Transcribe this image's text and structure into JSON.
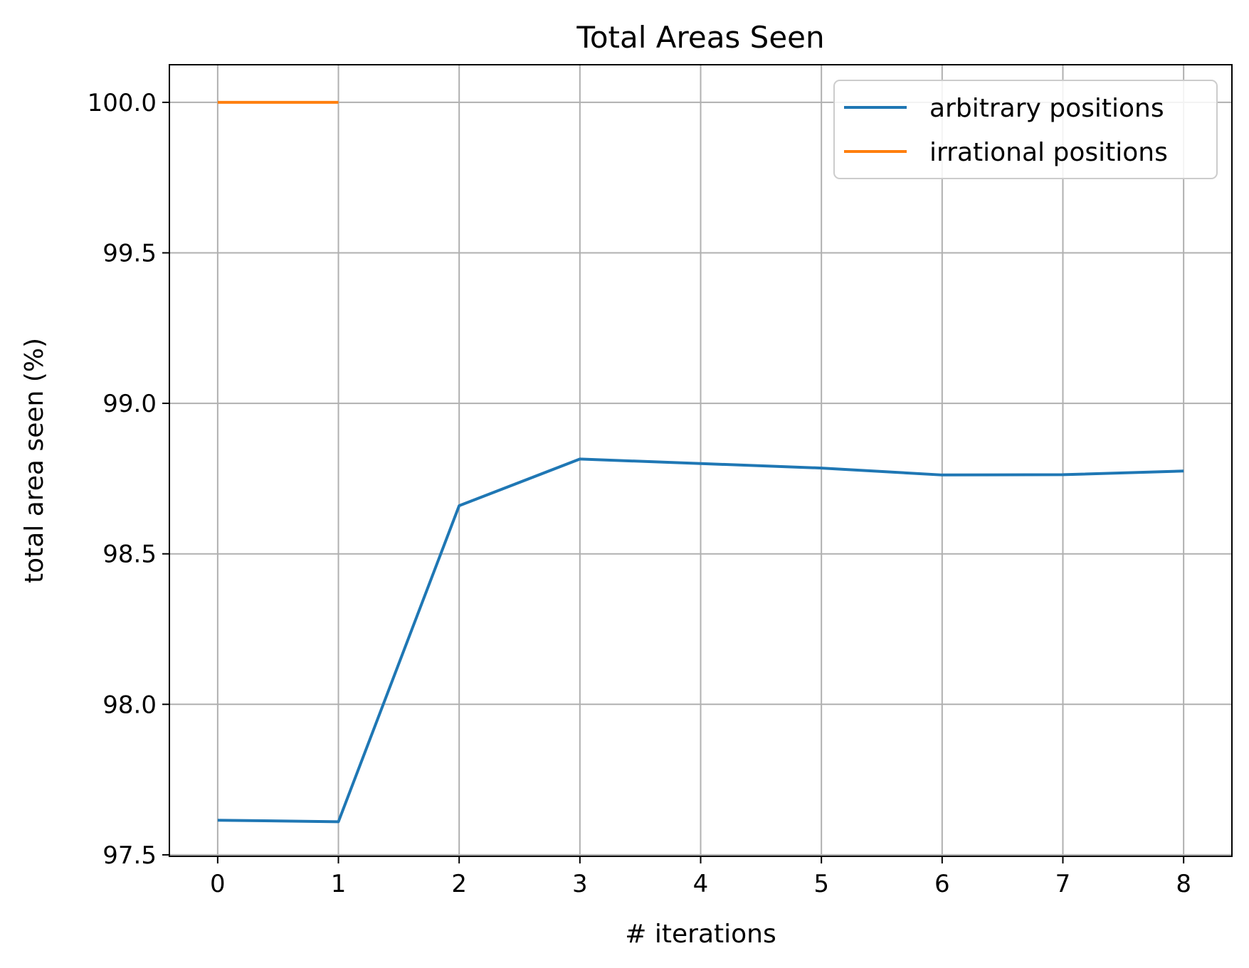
{
  "chart_data": {
    "type": "line",
    "title": "Total Areas Seen",
    "xlabel": "# iterations",
    "ylabel": "total area seen (%)",
    "xlim": [
      -0.4,
      8.4
    ],
    "ylim": [
      97.495,
      100.125
    ],
    "x_ticks": [
      0,
      1,
      2,
      3,
      4,
      5,
      6,
      7,
      8
    ],
    "x_tick_labels": [
      "0",
      "1",
      "2",
      "3",
      "4",
      "5",
      "6",
      "7",
      "8"
    ],
    "y_ticks": [
      97.5,
      98.0,
      98.5,
      99.0,
      99.5,
      100.0
    ],
    "y_tick_labels": [
      "97.5",
      "98.0",
      "98.5",
      "99.0",
      "99.5",
      "100.0"
    ],
    "grid": true,
    "legend_position": "top-right",
    "series": [
      {
        "name": "arbitrary positions",
        "color": "#1f77b4",
        "x": [
          0,
          1,
          2,
          3,
          4,
          5,
          6,
          7,
          8
        ],
        "values": [
          97.615,
          97.61,
          98.66,
          98.815,
          98.8,
          98.785,
          98.762,
          98.763,
          98.775
        ]
      },
      {
        "name": "irrational positions",
        "color": "#ff7f0e",
        "x": [
          0,
          1
        ],
        "values": [
          100.0,
          100.0
        ]
      }
    ]
  }
}
